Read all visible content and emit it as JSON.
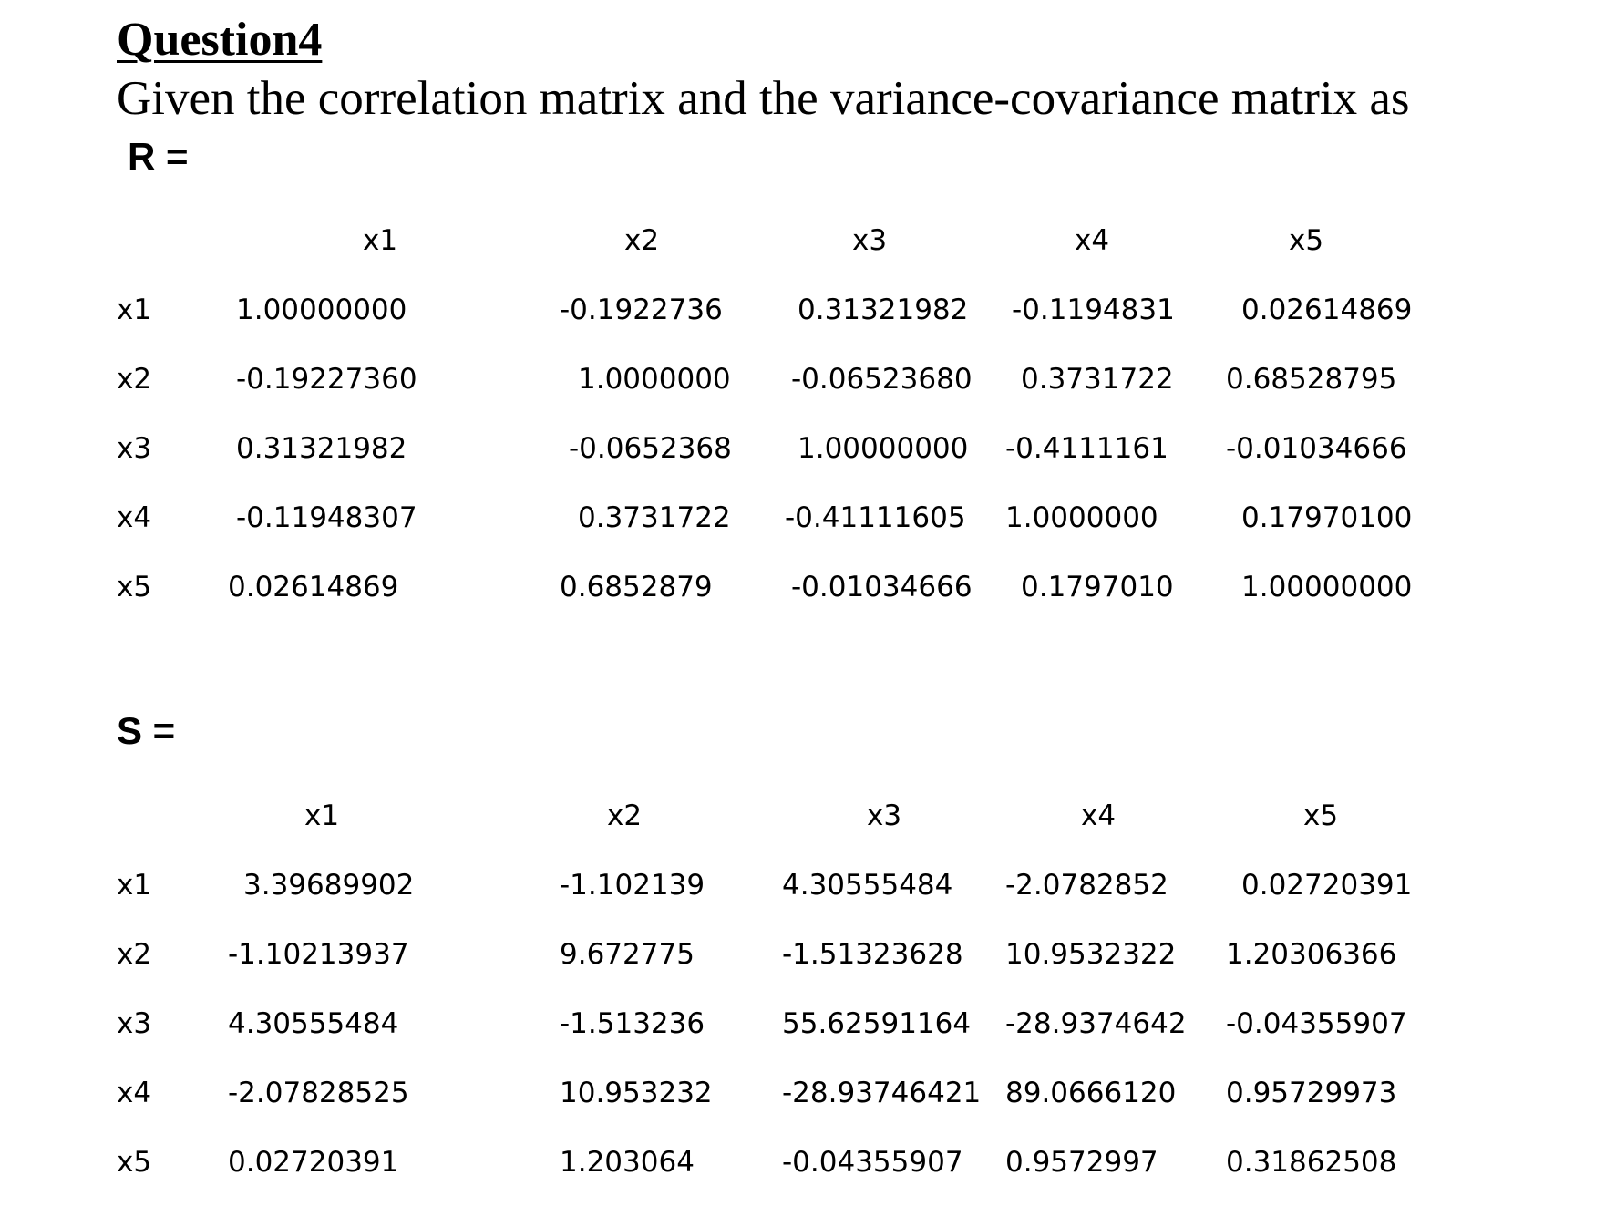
{
  "question": {
    "heading": "Question4",
    "intro": "Given the correlation matrix and the variance-covariance matrix as"
  },
  "matrix_r": {
    "label": "R =",
    "columns": [
      "x1",
      "x2",
      "x3",
      "x4",
      "x5"
    ],
    "rows": [
      {
        "name": "x1",
        "values": [
          "1.00000000",
          "-0.1922736",
          "0.31321982",
          "-0.1194831",
          "0.02614869"
        ]
      },
      {
        "name": "x2",
        "values": [
          "-0.19227360",
          "1.0000000",
          "-0.06523680",
          "0.3731722",
          "0.68528795"
        ]
      },
      {
        "name": "x3",
        "values": [
          "0.31321982",
          "-0.0652368",
          "1.00000000",
          "-0.4111161",
          "-0.01034666"
        ]
      },
      {
        "name": "x4",
        "values": [
          "-0.11948307",
          "0.3731722",
          "-0.41111605",
          "1.0000000",
          "0.17970100"
        ]
      },
      {
        "name": "x5",
        "values": [
          "0.02614869",
          "0.6852879",
          "-0.01034666",
          "0.1797010",
          "1.00000000"
        ]
      }
    ]
  },
  "matrix_s": {
    "label": "S =",
    "columns": [
      "x1",
      "x2",
      "x3",
      "x4",
      "x5"
    ],
    "rows": [
      {
        "name": "x1",
        "values": [
          "3.39689902",
          "-1.102139",
          "4.30555484",
          "-2.0782852",
          "0.02720391"
        ]
      },
      {
        "name": "x2",
        "values": [
          "-1.10213937",
          "9.672775",
          "-1.51323628",
          "10.9532322",
          "1.20306366"
        ]
      },
      {
        "name": "x3",
        "values": [
          "4.30555484",
          "-1.513236",
          "55.62591164",
          "-28.9374642",
          "-0.04355907"
        ]
      },
      {
        "name": "x4",
        "values": [
          "-2.07828525",
          "10.953232",
          "-28.93746421",
          "89.0666120",
          "0.95729973"
        ]
      },
      {
        "name": "x5",
        "values": [
          "0.02720391",
          "1.203064",
          "-0.04355907",
          "0.9572997",
          "0.31862508"
        ]
      }
    ]
  }
}
